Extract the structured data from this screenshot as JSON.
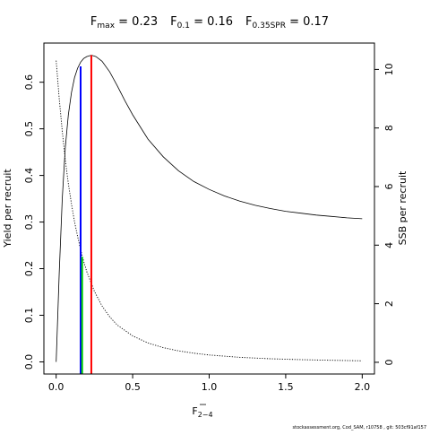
{
  "title": {
    "fmax_label": "F",
    "fmax_sub": "max",
    "fmax_value": " = 0.23",
    "f01_label": "F",
    "f01_sub": "0.1",
    "f01_value": " = 0.16",
    "fspr_label": "F",
    "fspr_sub": "0.35SPR",
    "fspr_value": " = 0.17"
  },
  "xaxis": {
    "label_main": "F",
    "label_sub": "2−4"
  },
  "yaxis_left": {
    "label": "Yield per recruit"
  },
  "yaxis_right": {
    "label": "SSB per recruit"
  },
  "footer": "stockassessment.org, Cod_SAM, r10758 , git: 503cf91af157",
  "chart_data": {
    "type": "line",
    "x_range": [
      -0.08,
      2.08
    ],
    "x_ticks": [
      0.0,
      0.5,
      1.0,
      1.5,
      2.0
    ],
    "x_tick_labels": [
      "0.0",
      "0.5",
      "1.0",
      "1.5",
      "2.0"
    ],
    "y_left_range": [
      -0.026,
      0.684
    ],
    "y_left_ticks": [
      0.0,
      0.1,
      0.2,
      0.3,
      0.4,
      0.5,
      0.6
    ],
    "y_left_tick_labels": [
      "0.0",
      "0.1",
      "0.2",
      "0.3",
      "0.4",
      "0.5",
      "0.6"
    ],
    "y_right_range": [
      -0.4,
      10.9
    ],
    "y_right_ticks": [
      0,
      2,
      4,
      6,
      8,
      10
    ],
    "y_right_tick_labels": [
      "0",
      "2",
      "4",
      "6",
      "8",
      "10"
    ],
    "grid": false,
    "series": [
      {
        "axis": "left",
        "style": "solid",
        "color": "#000000",
        "x": [
          0.0,
          0.02,
          0.04,
          0.06,
          0.08,
          0.1,
          0.12,
          0.14,
          0.16,
          0.18,
          0.2,
          0.23,
          0.26,
          0.3,
          0.35,
          0.4,
          0.45,
          0.5,
          0.6,
          0.7,
          0.8,
          0.9,
          1.0,
          1.1,
          1.2,
          1.3,
          1.4,
          1.5,
          1.6,
          1.7,
          1.8,
          1.9,
          2.0
        ],
        "y": [
          0.0,
          0.19,
          0.35,
          0.46,
          0.53,
          0.578,
          0.61,
          0.63,
          0.643,
          0.651,
          0.655,
          0.658,
          0.655,
          0.645,
          0.622,
          0.592,
          0.56,
          0.53,
          0.478,
          0.44,
          0.41,
          0.387,
          0.37,
          0.356,
          0.345,
          0.336,
          0.329,
          0.323,
          0.319,
          0.315,
          0.312,
          0.309,
          0.307
        ]
      },
      {
        "axis": "right",
        "style": "dotted",
        "color": "#000000",
        "x": [
          0.0,
          0.02,
          0.04,
          0.06,
          0.08,
          0.1,
          0.12,
          0.14,
          0.16,
          0.18,
          0.2,
          0.25,
          0.3,
          0.35,
          0.4,
          0.5,
          0.6,
          0.7,
          0.8,
          0.9,
          1.0,
          1.2,
          1.4,
          1.6,
          1.8,
          2.0
        ],
        "y": [
          10.3,
          9.0,
          7.9,
          6.9,
          6.1,
          5.4,
          4.8,
          4.3,
          3.85,
          3.45,
          3.1,
          2.42,
          1.92,
          1.55,
          1.27,
          0.9,
          0.66,
          0.5,
          0.39,
          0.31,
          0.25,
          0.17,
          0.12,
          0.09,
          0.07,
          0.05
        ]
      }
    ],
    "reference_lines": [
      {
        "x": 0.16,
        "axis": "left",
        "y_top": 0.634,
        "color": "#0000ff"
      },
      {
        "x": 0.23,
        "axis": "left",
        "y_top": 0.658,
        "color": "#ff0000"
      },
      {
        "x": 0.17,
        "axis": "right",
        "y_top": 3.6,
        "color": "#00cc00"
      }
    ]
  }
}
